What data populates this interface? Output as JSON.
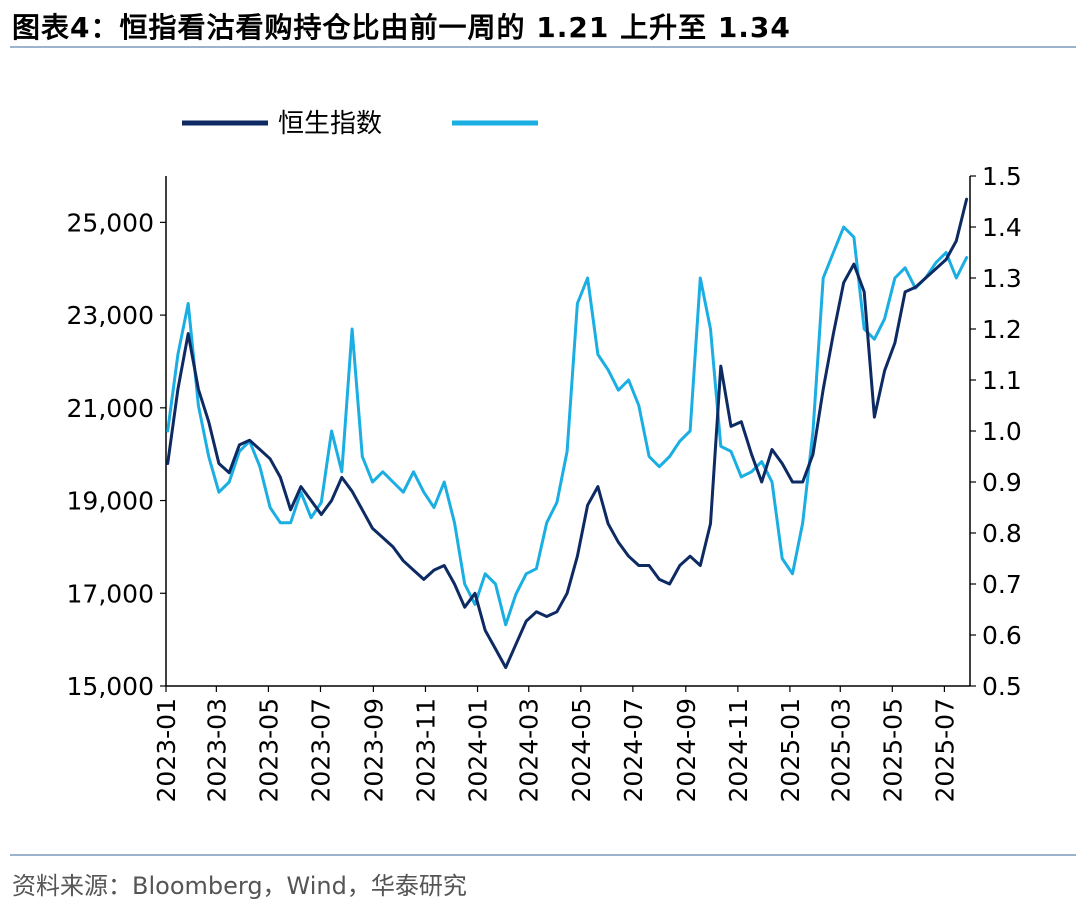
{
  "header": {
    "title": "图表4：恒指看沽看购持仓比由前一周的 1.21 上升至 1.34"
  },
  "footer": {
    "source": "资料来源：Bloomberg，Wind，华泰研究"
  },
  "colors": {
    "index": "#0d2a63",
    "ratio": "#1aaee3",
    "rule": "#9db3cc"
  },
  "chart_data": {
    "type": "line",
    "legend": {
      "placement": "top-left",
      "entries": [
        "恒生指数",
        ""
      ]
    },
    "xlim": [
      "2023-01-01",
      "2025-07-31"
    ],
    "x_ticks": [
      "2023-01",
      "2023-03",
      "2023-05",
      "2023-07",
      "2023-09",
      "2023-11",
      "2024-01",
      "2024-03",
      "2024-05",
      "2024-07",
      "2024-09",
      "2024-11",
      "2025-01",
      "2025-03",
      "2025-05",
      "2025-07"
    ],
    "y_left": {
      "lim": [
        15000,
        26000
      ],
      "ticks": [
        "15,000",
        "17,000",
        "19,000",
        "21,000",
        "23,000",
        "25,000"
      ],
      "tick_values": [
        15000,
        17000,
        19000,
        21000,
        23000,
        25000
      ]
    },
    "y_right": {
      "lim": [
        0.5,
        1.5
      ],
      "ticks": [
        "0.5",
        "0.6",
        "0.7",
        "0.8",
        "0.9",
        "1.0",
        "1.1",
        "1.2",
        "1.3",
        "1.4",
        "1.5"
      ],
      "tick_values": [
        0.5,
        0.6,
        0.7,
        0.8,
        0.9,
        1.0,
        1.1,
        1.2,
        1.3,
        1.4,
        1.5
      ]
    },
    "grid": false,
    "series": [
      {
        "name": "恒生指数",
        "axis": "left",
        "x": [
          "2023-01-03",
          "2023-01-15",
          "2023-01-27",
          "2023-02-08",
          "2023-02-20",
          "2023-03-04",
          "2023-03-16",
          "2023-03-28",
          "2023-04-09",
          "2023-04-21",
          "2023-05-03",
          "2023-05-15",
          "2023-05-27",
          "2023-06-08",
          "2023-06-20",
          "2023-07-02",
          "2023-07-14",
          "2023-07-26",
          "2023-08-07",
          "2023-08-19",
          "2023-08-31",
          "2023-09-12",
          "2023-09-24",
          "2023-10-06",
          "2023-10-18",
          "2023-10-30",
          "2023-11-11",
          "2023-11-23",
          "2023-12-05",
          "2023-12-17",
          "2023-12-29",
          "2024-01-10",
          "2024-01-22",
          "2024-02-03",
          "2024-02-15",
          "2024-02-27",
          "2024-03-10",
          "2024-03-22",
          "2024-04-03",
          "2024-04-15",
          "2024-04-27",
          "2024-05-09",
          "2024-05-21",
          "2024-06-02",
          "2024-06-14",
          "2024-06-26",
          "2024-07-08",
          "2024-07-20",
          "2024-08-01",
          "2024-08-13",
          "2024-08-25",
          "2024-09-06",
          "2024-09-18",
          "2024-09-30",
          "2024-10-12",
          "2024-10-24",
          "2024-11-05",
          "2024-11-17",
          "2024-11-29",
          "2024-12-11",
          "2024-12-23",
          "2025-01-04",
          "2025-01-16",
          "2025-01-28",
          "2025-02-09",
          "2025-02-21",
          "2025-03-05",
          "2025-03-17",
          "2025-03-29",
          "2025-04-10",
          "2025-04-22",
          "2025-05-04",
          "2025-05-16",
          "2025-05-28",
          "2025-06-09",
          "2025-06-21",
          "2025-07-03",
          "2025-07-15",
          "2025-07-27"
        ],
        "values": [
          19800,
          21400,
          22600,
          21400,
          20700,
          19800,
          19600,
          20200,
          20300,
          20100,
          19900,
          19500,
          18800,
          19300,
          19000,
          18700,
          19000,
          19500,
          19200,
          18800,
          18400,
          18200,
          18000,
          17700,
          17500,
          17300,
          17500,
          17600,
          17200,
          16700,
          17000,
          16200,
          15800,
          15400,
          15900,
          16400,
          16600,
          16500,
          16600,
          17000,
          17800,
          18900,
          19300,
          18500,
          18100,
          17800,
          17600,
          17600,
          17300,
          17200,
          17600,
          17800,
          17600,
          18500,
          21900,
          20600,
          20700,
          20000,
          19400,
          20100,
          19800,
          19400,
          19400,
          20000,
          21400,
          22600,
          23700,
          24100,
          23500,
          20800,
          21800,
          22400,
          23500,
          23600,
          23800,
          24000,
          24200,
          24600,
          25500
        ]
      },
      {
        "name": "",
        "axis": "right",
        "x": [
          "2023-01-03",
          "2023-01-15",
          "2023-01-27",
          "2023-02-08",
          "2023-02-20",
          "2023-03-04",
          "2023-03-16",
          "2023-03-28",
          "2023-04-09",
          "2023-04-21",
          "2023-05-03",
          "2023-05-15",
          "2023-05-27",
          "2023-06-08",
          "2023-06-20",
          "2023-07-02",
          "2023-07-14",
          "2023-07-26",
          "2023-08-07",
          "2023-08-19",
          "2023-08-31",
          "2023-09-12",
          "2023-09-24",
          "2023-10-06",
          "2023-10-18",
          "2023-10-30",
          "2023-11-11",
          "2023-11-23",
          "2023-12-05",
          "2023-12-17",
          "2023-12-29",
          "2024-01-10",
          "2024-01-22",
          "2024-02-03",
          "2024-02-15",
          "2024-02-27",
          "2024-03-10",
          "2024-03-22",
          "2024-04-03",
          "2024-04-15",
          "2024-04-27",
          "2024-05-09",
          "2024-05-21",
          "2024-06-02",
          "2024-06-14",
          "2024-06-26",
          "2024-07-08",
          "2024-07-20",
          "2024-08-01",
          "2024-08-13",
          "2024-08-25",
          "2024-09-06",
          "2024-09-18",
          "2024-09-30",
          "2024-10-12",
          "2024-10-24",
          "2024-11-05",
          "2024-11-17",
          "2024-11-29",
          "2024-12-11",
          "2024-12-23",
          "2025-01-04",
          "2025-01-16",
          "2025-01-28",
          "2025-02-09",
          "2025-02-21",
          "2025-03-05",
          "2025-03-17",
          "2025-03-29",
          "2025-04-10",
          "2025-04-22",
          "2025-05-04",
          "2025-05-16",
          "2025-05-28",
          "2025-06-09",
          "2025-06-21",
          "2025-07-03",
          "2025-07-15",
          "2025-07-27"
        ],
        "values": [
          1.0,
          1.15,
          1.25,
          1.05,
          0.95,
          0.88,
          0.9,
          0.96,
          0.98,
          0.93,
          0.85,
          0.82,
          0.82,
          0.88,
          0.83,
          0.86,
          1.0,
          0.92,
          1.2,
          0.95,
          0.9,
          0.92,
          0.9,
          0.88,
          0.92,
          0.88,
          0.85,
          0.9,
          0.82,
          0.7,
          0.66,
          0.72,
          0.7,
          0.62,
          0.68,
          0.72,
          0.73,
          0.82,
          0.86,
          0.96,
          1.25,
          1.3,
          1.15,
          1.12,
          1.08,
          1.1,
          1.05,
          0.95,
          0.93,
          0.95,
          0.98,
          1.0,
          1.3,
          1.2,
          0.97,
          0.96,
          0.91,
          0.92,
          0.94,
          0.9,
          0.75,
          0.72,
          0.82,
          1.0,
          1.3,
          1.35,
          1.4,
          1.38,
          1.2,
          1.18,
          1.22,
          1.3,
          1.32,
          1.28,
          1.3,
          1.33,
          1.35,
          1.3,
          1.34
        ]
      }
    ]
  }
}
